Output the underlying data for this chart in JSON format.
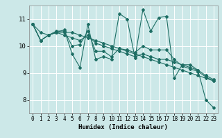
{
  "title": "",
  "xlabel": "Humidex (Indice chaleur)",
  "xlim": [
    -0.5,
    23.5
  ],
  "ylim": [
    7.5,
    11.5
  ],
  "xticks": [
    0,
    1,
    2,
    3,
    4,
    5,
    6,
    7,
    8,
    9,
    10,
    11,
    12,
    13,
    14,
    15,
    16,
    17,
    18,
    19,
    20,
    21,
    22,
    23
  ],
  "yticks": [
    8,
    9,
    10,
    11
  ],
  "bg_color": "#cce8e8",
  "line_color": "#1e6e64",
  "grid_color": "#ffffff",
  "series": [
    [
      10.8,
      10.2,
      10.4,
      10.5,
      10.6,
      9.7,
      9.2,
      10.8,
      9.5,
      9.6,
      9.5,
      11.2,
      11.0,
      9.55,
      11.35,
      10.55,
      11.05,
      11.1,
      8.8,
      9.3,
      9.3,
      9.1,
      8.0,
      7.7
    ],
    [
      10.8,
      10.2,
      10.4,
      10.5,
      10.5,
      10.5,
      10.4,
      10.3,
      10.2,
      10.1,
      10.0,
      9.9,
      9.8,
      9.7,
      9.6,
      9.5,
      9.4,
      9.3,
      9.2,
      9.1,
      9.0,
      8.9,
      8.8,
      8.7
    ],
    [
      10.8,
      10.5,
      10.4,
      10.5,
      10.4,
      10.3,
      10.2,
      10.4,
      10.1,
      10.0,
      9.9,
      9.8,
      9.7,
      9.6,
      9.7,
      9.6,
      9.5,
      9.5,
      9.4,
      9.3,
      9.2,
      9.1,
      8.9,
      8.75
    ],
    [
      10.8,
      10.2,
      10.4,
      10.55,
      10.55,
      10.0,
      10.05,
      10.55,
      9.8,
      9.8,
      9.6,
      9.9,
      9.85,
      9.75,
      10.0,
      9.85,
      9.85,
      9.85,
      9.5,
      9.25,
      9.15,
      9.05,
      8.85,
      8.7
    ]
  ],
  "xlabel_fontsize": 6.5,
  "tick_fontsize": 5.5,
  "ytick_fontsize": 6.5
}
